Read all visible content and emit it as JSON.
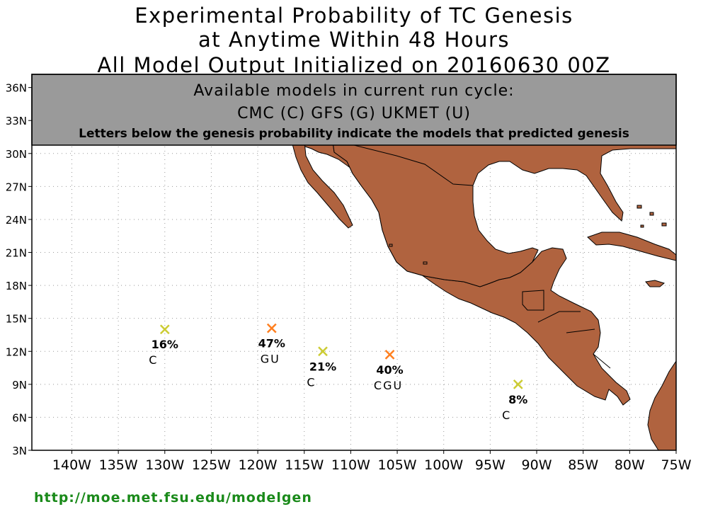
{
  "title": {
    "line1": "Experimental Probability of TC Genesis",
    "line2": "at Anytime Within 48 Hours",
    "line3": "All Model Output Initialized on 20160630 00Z"
  },
  "info_box": {
    "line1": "Available models in current run cycle:",
    "line2": "CMC (C) GFS (G)  UKMET (U)",
    "line3": "Letters below the genesis probability indicate the models that predicted genesis"
  },
  "axes": {
    "lat_ticks": [
      "36N",
      "33N",
      "30N",
      "27N",
      "24N",
      "21N",
      "18N",
      "15N",
      "12N",
      "9N",
      "6N",
      "3N"
    ],
    "lon_ticks": [
      "140W",
      "135W",
      "130W",
      "125W",
      "120W",
      "115W",
      "110W",
      "105W",
      "100W",
      "95W",
      "90W",
      "85W",
      "80W",
      "75W"
    ]
  },
  "points": [
    {
      "lon": -130.0,
      "lat": 14.0,
      "prob": "16%",
      "models": "C",
      "color": "#cccc33"
    },
    {
      "lon": -118.5,
      "lat": 14.1,
      "prob": "47%",
      "models": "GU",
      "color": "#ff7f1f"
    },
    {
      "lon": -113.0,
      "lat": 12.0,
      "prob": "21%",
      "models": "C",
      "color": "#cccc33"
    },
    {
      "lon": -105.8,
      "lat": 11.7,
      "prob": "40%",
      "models": "CGU",
      "color": "#ff7f1f"
    },
    {
      "lon": -92.0,
      "lat": 9.0,
      "prob": "8%",
      "models": "C",
      "color": "#cccc33"
    }
  ],
  "colors": {
    "land": "#b0633f",
    "box": "#9a9a9a",
    "footer": "#1a8a1a"
  },
  "footer": "http://moe.met.fsu.edu/modelgen"
}
